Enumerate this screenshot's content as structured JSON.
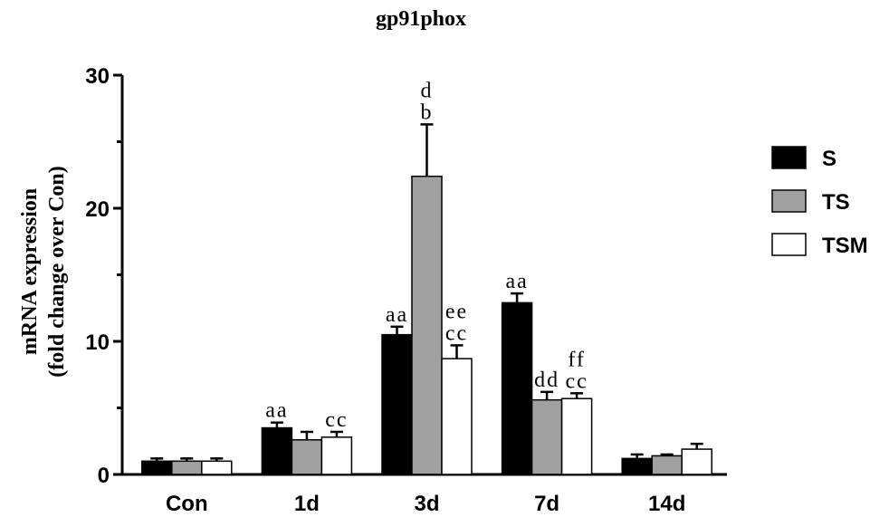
{
  "chart_data": {
    "type": "bar",
    "title": "gp91phox",
    "y_label": [
      "mRNA expression",
      "(fold change over Con)"
    ],
    "categories": [
      "Con",
      "1d",
      "3d",
      "7d",
      "14d"
    ],
    "series": [
      {
        "name": "S",
        "color": "#000000",
        "values": [
          1.0,
          3.5,
          10.5,
          12.9,
          1.2
        ],
        "errors": [
          0.2,
          0.4,
          0.6,
          0.7,
          0.3
        ],
        "labels": [
          null,
          [
            "aa"
          ],
          [
            "aa"
          ],
          [
            "aa"
          ],
          null
        ]
      },
      {
        "name": "TS",
        "color": "#a0a0a0",
        "values": [
          1.0,
          2.6,
          22.4,
          5.6,
          1.4
        ],
        "errors": [
          0.2,
          0.6,
          3.9,
          0.6,
          0.1
        ],
        "labels": [
          null,
          null,
          [
            "d",
            "b"
          ],
          [
            "dd"
          ],
          null
        ]
      },
      {
        "name": "TSM",
        "color": "#ffffff",
        "values": [
          1.0,
          2.8,
          8.7,
          5.7,
          1.9
        ],
        "errors": [
          0.2,
          0.4,
          1.0,
          0.4,
          0.4
        ],
        "labels": [
          null,
          [
            "cc"
          ],
          [
            "ee",
            "cc"
          ],
          [
            "ff",
            "cc"
          ],
          null
        ]
      }
    ],
    "ylim": [
      0,
      30
    ],
    "yticks": [
      0,
      10,
      20,
      30
    ]
  }
}
